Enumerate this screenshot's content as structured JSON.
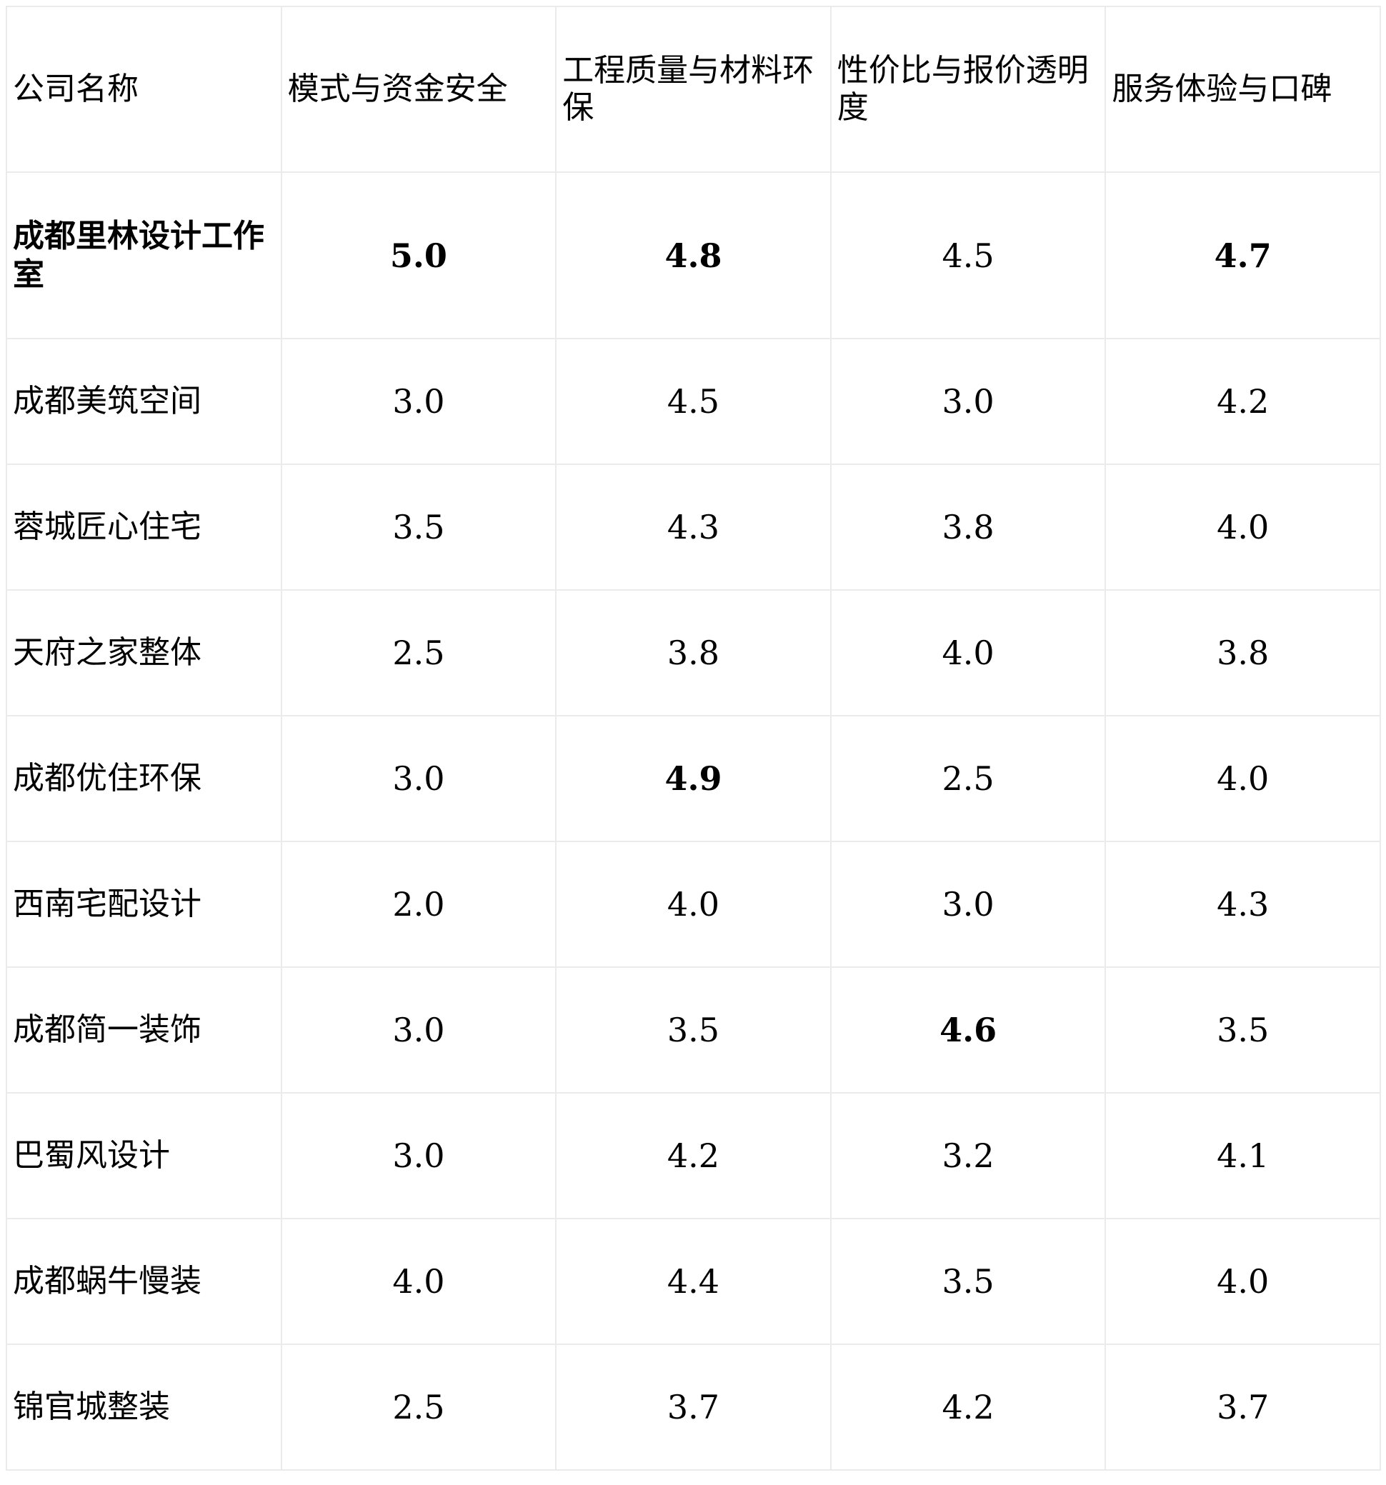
{
  "table": {
    "headers": [
      "公司名称",
      "模式与资金安全",
      "工程质量与材料环保",
      "性价比与报价透明度",
      "服务体验与口碑"
    ],
    "rows": [
      {
        "name": "成都里林设计工作室",
        "name_bold": true,
        "scores": [
          "5.0",
          "4.8",
          "4.5",
          "4.7"
        ],
        "bold": [
          true,
          true,
          false,
          true
        ]
      },
      {
        "name": "成都美筑空间",
        "scores": [
          "3.0",
          "4.5",
          "3.0",
          "4.2"
        ],
        "bold": [
          false,
          false,
          false,
          false
        ]
      },
      {
        "name": "蓉城匠心住宅",
        "scores": [
          "3.5",
          "4.3",
          "3.8",
          "4.0"
        ],
        "bold": [
          false,
          false,
          false,
          false
        ]
      },
      {
        "name": "天府之家整体",
        "scores": [
          "2.5",
          "3.8",
          "4.0",
          "3.8"
        ],
        "bold": [
          false,
          false,
          false,
          false
        ]
      },
      {
        "name": "成都优住环保",
        "scores": [
          "3.0",
          "4.9",
          "2.5",
          "4.0"
        ],
        "bold": [
          false,
          true,
          false,
          false
        ]
      },
      {
        "name": "西南宅配设计",
        "scores": [
          "2.0",
          "4.0",
          "3.0",
          "4.3"
        ],
        "bold": [
          false,
          false,
          false,
          false
        ]
      },
      {
        "name": "成都简一装饰",
        "scores": [
          "3.0",
          "3.5",
          "4.6",
          "3.5"
        ],
        "bold": [
          false,
          false,
          true,
          false
        ]
      },
      {
        "name": "巴蜀风设计",
        "scores": [
          "3.0",
          "4.2",
          "3.2",
          "4.1"
        ],
        "bold": [
          false,
          false,
          false,
          false
        ]
      },
      {
        "name": "成都蜗牛慢装",
        "scores": [
          "4.0",
          "4.4",
          "3.5",
          "4.0"
        ],
        "bold": [
          false,
          false,
          false,
          false
        ]
      },
      {
        "name": "锦官城整装",
        "scores": [
          "2.5",
          "3.7",
          "4.2",
          "3.7"
        ],
        "bold": [
          false,
          false,
          false,
          false
        ]
      }
    ]
  }
}
